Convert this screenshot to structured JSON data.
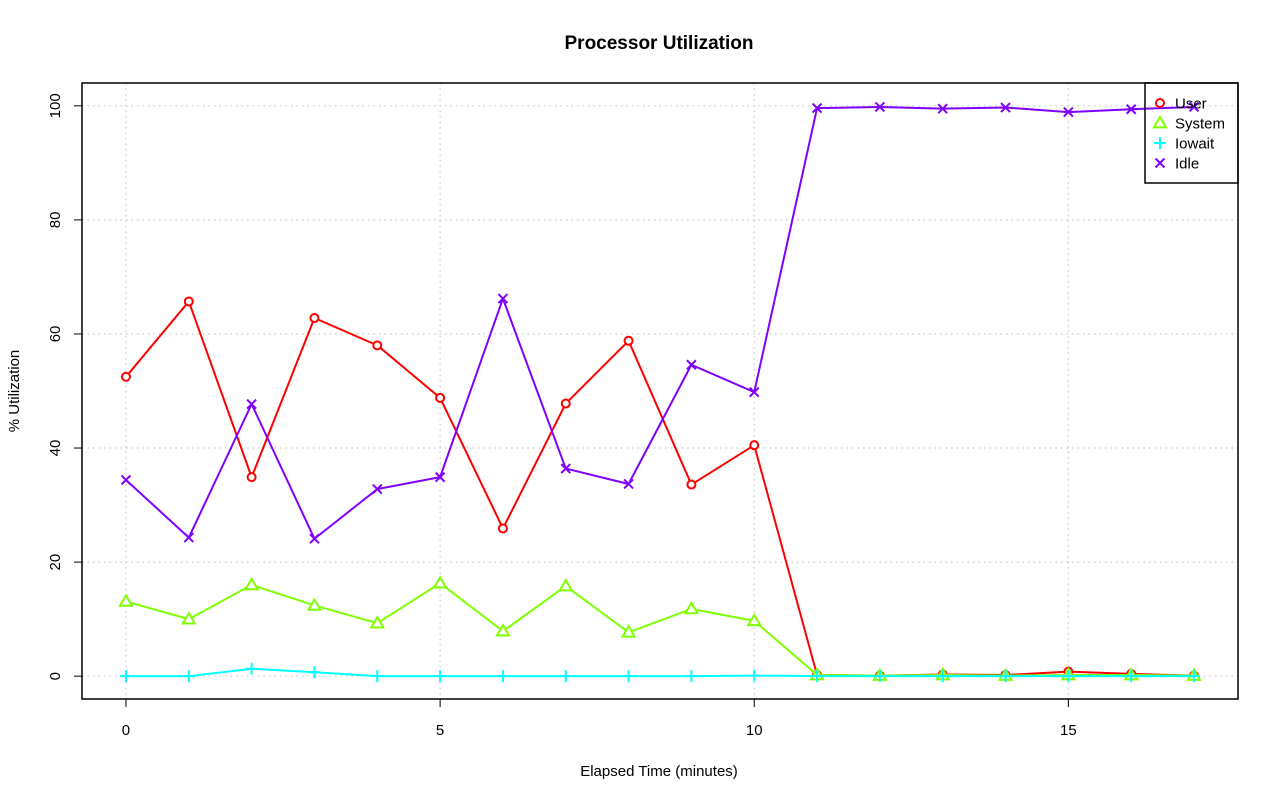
{
  "chart_data": {
    "type": "line",
    "title": "Processor Utilization",
    "xlabel": "Elapsed Time (minutes)",
    "ylabel": "% Utilization",
    "xlim": [
      -0.7,
      17.7
    ],
    "ylim": [
      -4,
      104
    ],
    "xticks": [
      0,
      5,
      10,
      15
    ],
    "yticks": [
      0,
      20,
      40,
      60,
      80,
      100
    ],
    "grid": true,
    "legend_position": "top-right",
    "x": [
      0,
      1,
      2,
      3,
      4,
      5,
      6,
      7,
      8,
      9,
      10,
      11,
      12,
      13,
      14,
      15,
      16,
      17
    ],
    "series": [
      {
        "name": "User",
        "color": "#ff0000",
        "marker": "circle",
        "values": [
          52.5,
          65.7,
          34.9,
          62.8,
          58.0,
          48.8,
          25.9,
          47.8,
          58.8,
          33.6,
          40.5,
          0.2,
          0.1,
          0.3,
          0.2,
          0.8,
          0.4,
          0.1
        ]
      },
      {
        "name": "System",
        "color": "#80ff00",
        "marker": "triangle",
        "values": [
          13.1,
          10.0,
          16.0,
          12.4,
          9.3,
          16.3,
          7.9,
          15.8,
          7.7,
          11.8,
          9.7,
          0.2,
          0.1,
          0.2,
          0.1,
          0.2,
          0.2,
          0.1
        ]
      },
      {
        "name": "Iowait",
        "color": "#00ffff",
        "marker": "plus",
        "values": [
          0.0,
          0.0,
          1.3,
          0.7,
          0.0,
          0.0,
          0.0,
          0.0,
          0.0,
          0.0,
          0.1,
          0.0,
          0.0,
          0.0,
          0.0,
          0.0,
          0.0,
          0.0
        ]
      },
      {
        "name": "Idle",
        "color": "#8000ff",
        "marker": "x",
        "values": [
          34.4,
          24.3,
          47.7,
          24.1,
          32.8,
          34.9,
          66.2,
          36.4,
          33.7,
          54.6,
          49.8,
          99.6,
          99.8,
          99.5,
          99.7,
          98.9,
          99.4,
          99.8
        ]
      }
    ]
  }
}
